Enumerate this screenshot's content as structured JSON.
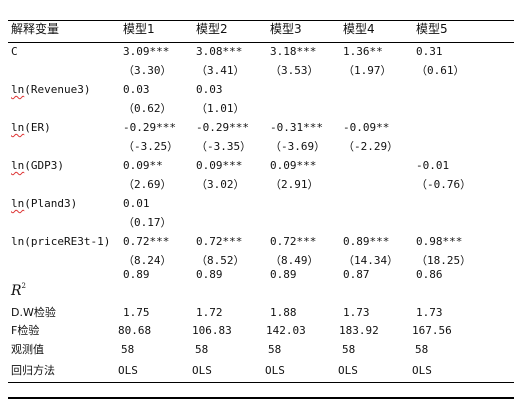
{
  "header": {
    "label": "解释变量",
    "models": [
      "模型1",
      "模型2",
      "模型3",
      "模型4",
      "模型5"
    ]
  },
  "rows": {
    "c": {
      "label": "C",
      "coef": [
        "3.09***",
        "3.08***",
        "3.18***",
        "1.36**",
        "0.31"
      ],
      "se": [
        "（3.30）",
        "（3.41）",
        "（3.53）",
        "（1.97）",
        "（0.61）"
      ]
    },
    "revenue": {
      "label_prefix": "ln",
      "label_suffix": "(Revenue3)",
      "coef": [
        "0.03",
        "0.03",
        "",
        "",
        ""
      ],
      "se": [
        "（0.62）",
        "（1.01）",
        "",
        "",
        ""
      ]
    },
    "er": {
      "label_prefix": "ln",
      "label_suffix": "(ER)",
      "coef": [
        "-0.29***",
        "-0.29***",
        "-0.31***",
        "-0.09**",
        ""
      ],
      "se": [
        "（-3.25）",
        "（-3.35）",
        "（-3.69）",
        "（-2.29）",
        ""
      ]
    },
    "gdp": {
      "label_prefix": "ln",
      "label_suffix": "(GDP3)",
      "coef": [
        "0.09**",
        "0.09***",
        "0.09***",
        "",
        "-0.01"
      ],
      "se": [
        "（2.69）",
        "（3.02）",
        "（2.91）",
        "",
        "（-0.76）"
      ]
    },
    "pland": {
      "label_prefix": "ln",
      "label_suffix": "(Pland3)",
      "coef": [
        "0.01",
        "",
        "",
        "",
        ""
      ],
      "se": [
        "（0.17）",
        "",
        "",
        "",
        ""
      ]
    },
    "price": {
      "label": "ln(priceRE3t-1)",
      "coef": [
        "0.72***",
        "0.72***",
        "0.72***",
        "0.89***",
        "0.98***"
      ],
      "se": [
        "（8.24）",
        "（8.52）",
        "（8.49）",
        "（14.34）",
        "（18.25）"
      ]
    }
  },
  "stats": {
    "r2": {
      "label": "R",
      "sup": "2",
      "values": [
        "0.89",
        "0.89",
        "0.89",
        "0.87",
        "0.86"
      ]
    },
    "dw": {
      "label": "D.W检验",
      "values": [
        "1.75",
        "1.72",
        "1.88",
        "1.73",
        "1.73"
      ]
    },
    "f": {
      "label": "F检验",
      "values": [
        "80.68",
        "106.83",
        "142.03",
        "183.92",
        "167.56"
      ]
    },
    "obs": {
      "label": "观测值",
      "values": [
        "58",
        "58",
        "58",
        "58",
        "58"
      ]
    },
    "method": {
      "label": "回归方法",
      "values": [
        "OLS",
        "OLS",
        "OLS",
        "OLS",
        "OLS"
      ]
    }
  }
}
